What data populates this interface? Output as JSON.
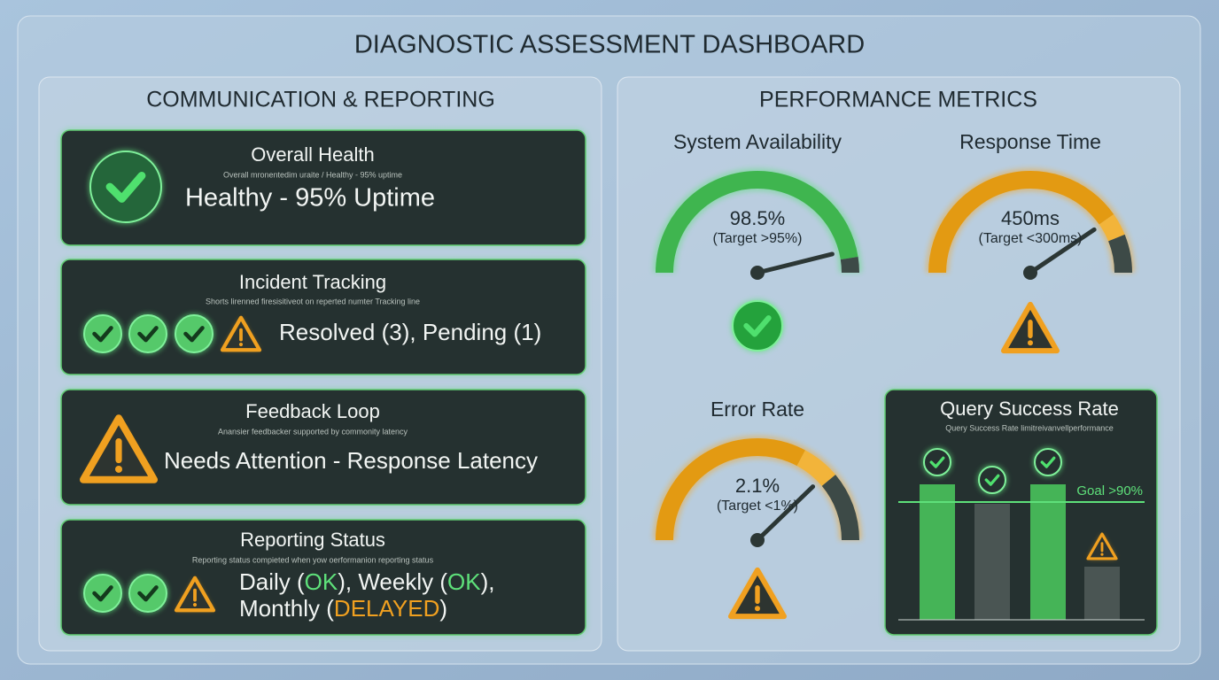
{
  "header": {
    "title": "DIAGNOSTIC ASSESSMENT DASHBOARD"
  },
  "left_panel": {
    "title": "COMMUNICATION & REPORTING",
    "cards": [
      {
        "title": "Overall Health",
        "subtitle": "Overall mronentedim uraite / Healthy - 95% uptime",
        "status": "Healthy - 95% Uptime"
      },
      {
        "title": "Incident Tracking",
        "subtitle": "Shorts lirenned firesisitiveot on reperted numter Tracking line",
        "status": "Resolved (3), Pending (1)"
      },
      {
        "title": "Feedback Loop",
        "subtitle": "Anansier feedbacker supported by commonity latency",
        "status": "Needs Attention - Response Latency"
      },
      {
        "title": "Reporting Status",
        "subtitle": "Reporting status compieted when yow oerformanion reporting status",
        "status_line1": [
          "Daily (",
          "OK",
          "), Weekly (",
          "OK",
          "),"
        ],
        "status_line2": [
          "Monthly (",
          "DELAYED",
          ")"
        ]
      }
    ]
  },
  "right_panel": {
    "title": "PERFORMANCE METRICS",
    "gauges": [
      {
        "title": "System Availability",
        "value": "98.5%",
        "target": "(Target >95%)"
      },
      {
        "title": "Response Time",
        "value": "450ms",
        "target": "(Target <300ms)"
      },
      {
        "title": "Error Rate",
        "value": "2.1%",
        "target": "(Target <1%)"
      }
    ],
    "query_panel": {
      "title": "Query Success Rate",
      "subtitle": "Query Success Rate limitreivanvellperformance",
      "goal": "Goal >90%"
    }
  }
}
